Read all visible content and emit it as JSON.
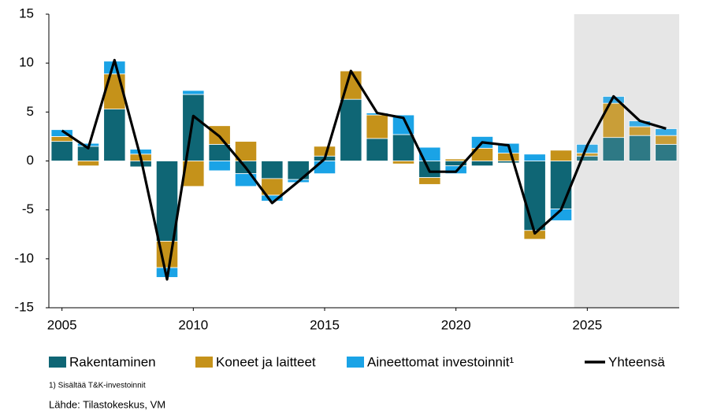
{
  "chart_data": {
    "type": "stacked-bar-line",
    "x": [
      2005,
      2006,
      2007,
      2008,
      2009,
      2010,
      2011,
      2012,
      2013,
      2014,
      2015,
      2016,
      2017,
      2018,
      2019,
      2020,
      2021,
      2022,
      2023,
      2024,
      2025,
      2026,
      2027,
      2028
    ],
    "series": [
      {
        "name": "Rakentaminen",
        "color": "#0f6675",
        "kind": "bar",
        "values": [
          2.0,
          1.5,
          5.3,
          -0.6,
          -8.2,
          6.8,
          1.7,
          -1.3,
          -1.8,
          -1.9,
          0.5,
          6.3,
          2.3,
          2.7,
          -1.7,
          -0.5,
          -0.5,
          -0.2,
          -7.1,
          -4.9,
          0.5,
          2.4,
          2.6,
          1.7
        ]
      },
      {
        "name": "Koneet ja laitteet",
        "color": "#c5921a",
        "kind": "bar",
        "values": [
          0.5,
          -0.5,
          3.6,
          0.7,
          -2.7,
          -2.6,
          1.9,
          2.0,
          -1.7,
          0.0,
          1.0,
          2.9,
          2.4,
          -0.3,
          -0.7,
          0.2,
          1.3,
          0.8,
          -0.9,
          1.1,
          0.3,
          3.5,
          0.9,
          0.9
        ]
      },
      {
        "name": "Aineettomat investoinnit¹",
        "color": "#1aa3e6",
        "kind": "bar",
        "values": [
          0.7,
          0.3,
          1.3,
          0.5,
          -1.0,
          0.4,
          -1.0,
          -1.3,
          -0.6,
          -0.3,
          -1.3,
          0.0,
          0.2,
          2.0,
          1.4,
          -0.8,
          1.2,
          1.0,
          0.7,
          -1.2,
          0.9,
          0.7,
          0.6,
          0.7
        ]
      },
      {
        "name": "Yhteensä",
        "color": "#000000",
        "kind": "line",
        "values": [
          3.1,
          1.3,
          10.3,
          0.3,
          -12.1,
          4.6,
          2.5,
          -0.7,
          -4.3,
          -2.1,
          0.2,
          9.2,
          4.9,
          4.4,
          -1.1,
          -1.1,
          1.9,
          1.6,
          -7.4,
          -5.0,
          1.6,
          6.6,
          4.1,
          3.3
        ]
      }
    ],
    "xlim": [
      2004.5,
      2028.5
    ],
    "xticks": [
      2005,
      2010,
      2015,
      2020,
      2025
    ],
    "ylim": [
      -15,
      15
    ],
    "yticks": [
      -15,
      -10,
      -5,
      0,
      5,
      10,
      15
    ],
    "forecast_start": 2024.5,
    "forecast_color": "#e6e6e6",
    "footnote": "1) Sisältää T&K-investoinnit",
    "source": "Lähde: Tilastokeskus, VM"
  }
}
